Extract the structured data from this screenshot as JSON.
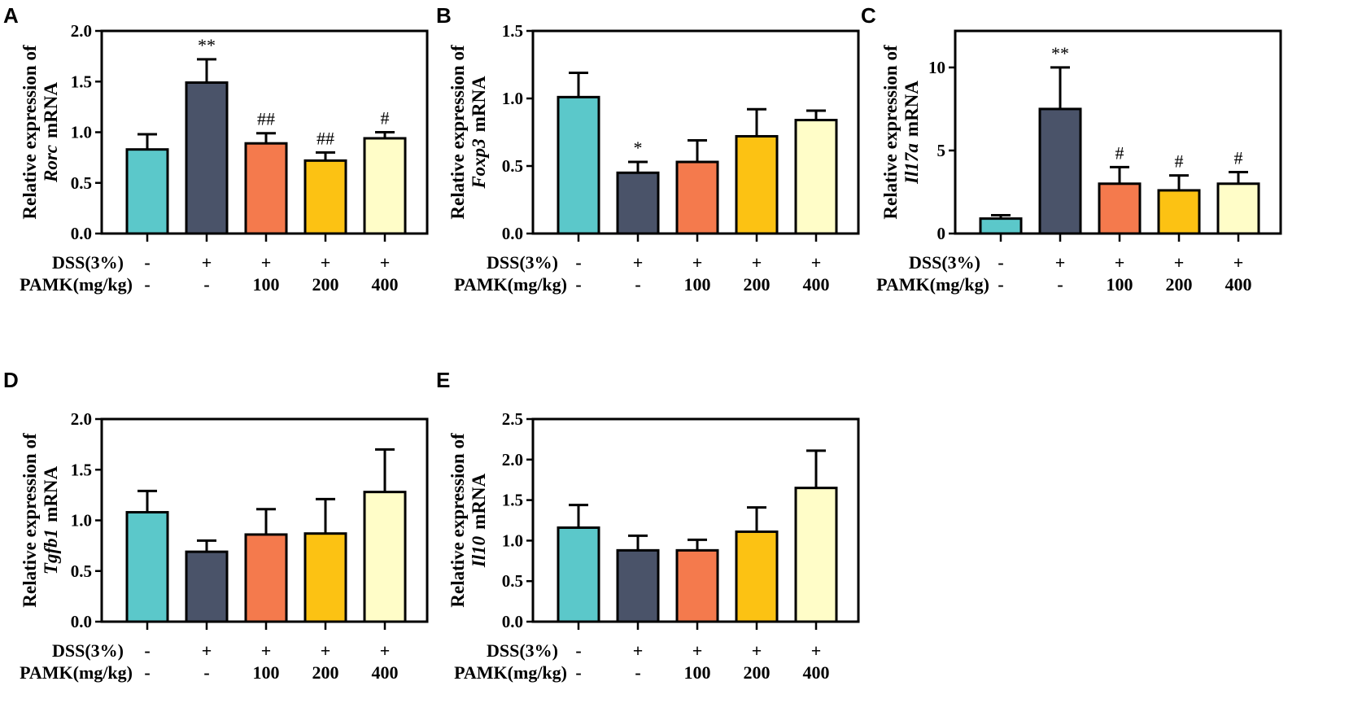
{
  "colors": [
    "#5BC8CA",
    "#4A5369",
    "#F47A4D",
    "#FCC213",
    "#FFFDC8"
  ],
  "condition_labels": {
    "dss": "DSS(3%)",
    "pamk": "PAMK(mg/kg)"
  },
  "conditions": {
    "dss": [
      "-",
      "+",
      "+",
      "+",
      "+"
    ],
    "pamk": [
      "-",
      "-",
      "100",
      "200",
      "400"
    ]
  },
  "chart_data": [
    {
      "type": "bar",
      "panel": "A",
      "ylabel_prefix": "Relative expression of",
      "gene": "Rorc",
      "ylabel_suffix": "mRNA",
      "ylim": [
        0,
        2.0
      ],
      "yticks": [
        "0.0",
        "0.5",
        "1.0",
        "1.5",
        "2.0"
      ],
      "values": [
        0.83,
        1.49,
        0.89,
        0.72,
        0.94
      ],
      "errors": [
        0.15,
        0.23,
        0.1,
        0.08,
        0.06
      ],
      "annotations": [
        "",
        "**",
        "##",
        "##",
        "#"
      ]
    },
    {
      "type": "bar",
      "panel": "B",
      "ylabel_prefix": "Relative expression of",
      "gene": "Foxp3",
      "ylabel_suffix": "mRNA",
      "ylim": [
        0,
        1.5
      ],
      "yticks": [
        "0.0",
        "0.5",
        "1.0",
        "1.5"
      ],
      "values": [
        1.01,
        0.45,
        0.53,
        0.72,
        0.84
      ],
      "errors": [
        0.18,
        0.08,
        0.16,
        0.2,
        0.07
      ],
      "annotations": [
        "",
        "*",
        "",
        "",
        ""
      ]
    },
    {
      "type": "bar",
      "panel": "C",
      "ylabel_prefix": "Relative expression of",
      "gene": "Il17a",
      "ylabel_suffix": "mRNA",
      "ylim": [
        0,
        12.2
      ],
      "yticks": [
        "0",
        "5",
        "10"
      ],
      "values": [
        0.9,
        7.5,
        3.0,
        2.6,
        3.0
      ],
      "errors": [
        0.2,
        2.5,
        1.0,
        0.9,
        0.7
      ],
      "annotations": [
        "",
        "**",
        "#",
        "#",
        "#"
      ]
    },
    {
      "type": "bar",
      "panel": "D",
      "ylabel_prefix": "Relative expression of",
      "gene": "Tgfb1",
      "ylabel_suffix": "mRNA",
      "ylim": [
        0,
        2.0
      ],
      "yticks": [
        "0.0",
        "0.5",
        "1.0",
        "1.5",
        "2.0"
      ],
      "values": [
        1.08,
        0.69,
        0.86,
        0.87,
        1.28
      ],
      "errors": [
        0.21,
        0.11,
        0.25,
        0.34,
        0.42
      ],
      "annotations": [
        "",
        "",
        "",
        "",
        ""
      ]
    },
    {
      "type": "bar",
      "panel": "E",
      "ylabel_prefix": "Relative expression of",
      "gene": "Il10",
      "ylabel_suffix": "mRNA",
      "ylim": [
        0,
        2.5
      ],
      "yticks": [
        "0.0",
        "0.5",
        "1.0",
        "1.5",
        "2.0",
        "2.5"
      ],
      "values": [
        1.16,
        0.88,
        0.88,
        1.11,
        1.65
      ],
      "errors": [
        0.28,
        0.18,
        0.13,
        0.3,
        0.46
      ],
      "annotations": [
        "",
        "",
        "",
        "",
        ""
      ]
    }
  ]
}
